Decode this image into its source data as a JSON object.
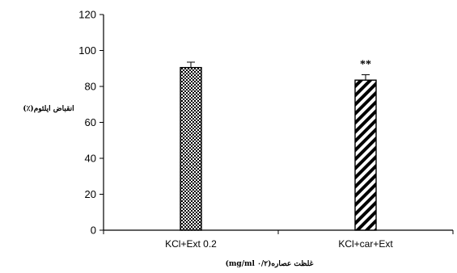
{
  "chart_data": {
    "type": "bar",
    "categories": [
      "KCl+Ext 0.2",
      "KCl+car+Ext"
    ],
    "values": [
      90.5,
      83.5
    ],
    "errors": [
      3,
      3
    ],
    "annotations": [
      "",
      "**"
    ],
    "bar_patterns": [
      "checker",
      "diagonal"
    ],
    "ylabel": "انقباض ایلئوم(٪)",
    "xlabel": "غلظت عصاره(۰/۲ mg/ml)",
    "ylim": [
      0,
      120
    ],
    "yticks": [
      0,
      20,
      40,
      60,
      80,
      100,
      120
    ],
    "grid": false,
    "legend": "none"
  }
}
